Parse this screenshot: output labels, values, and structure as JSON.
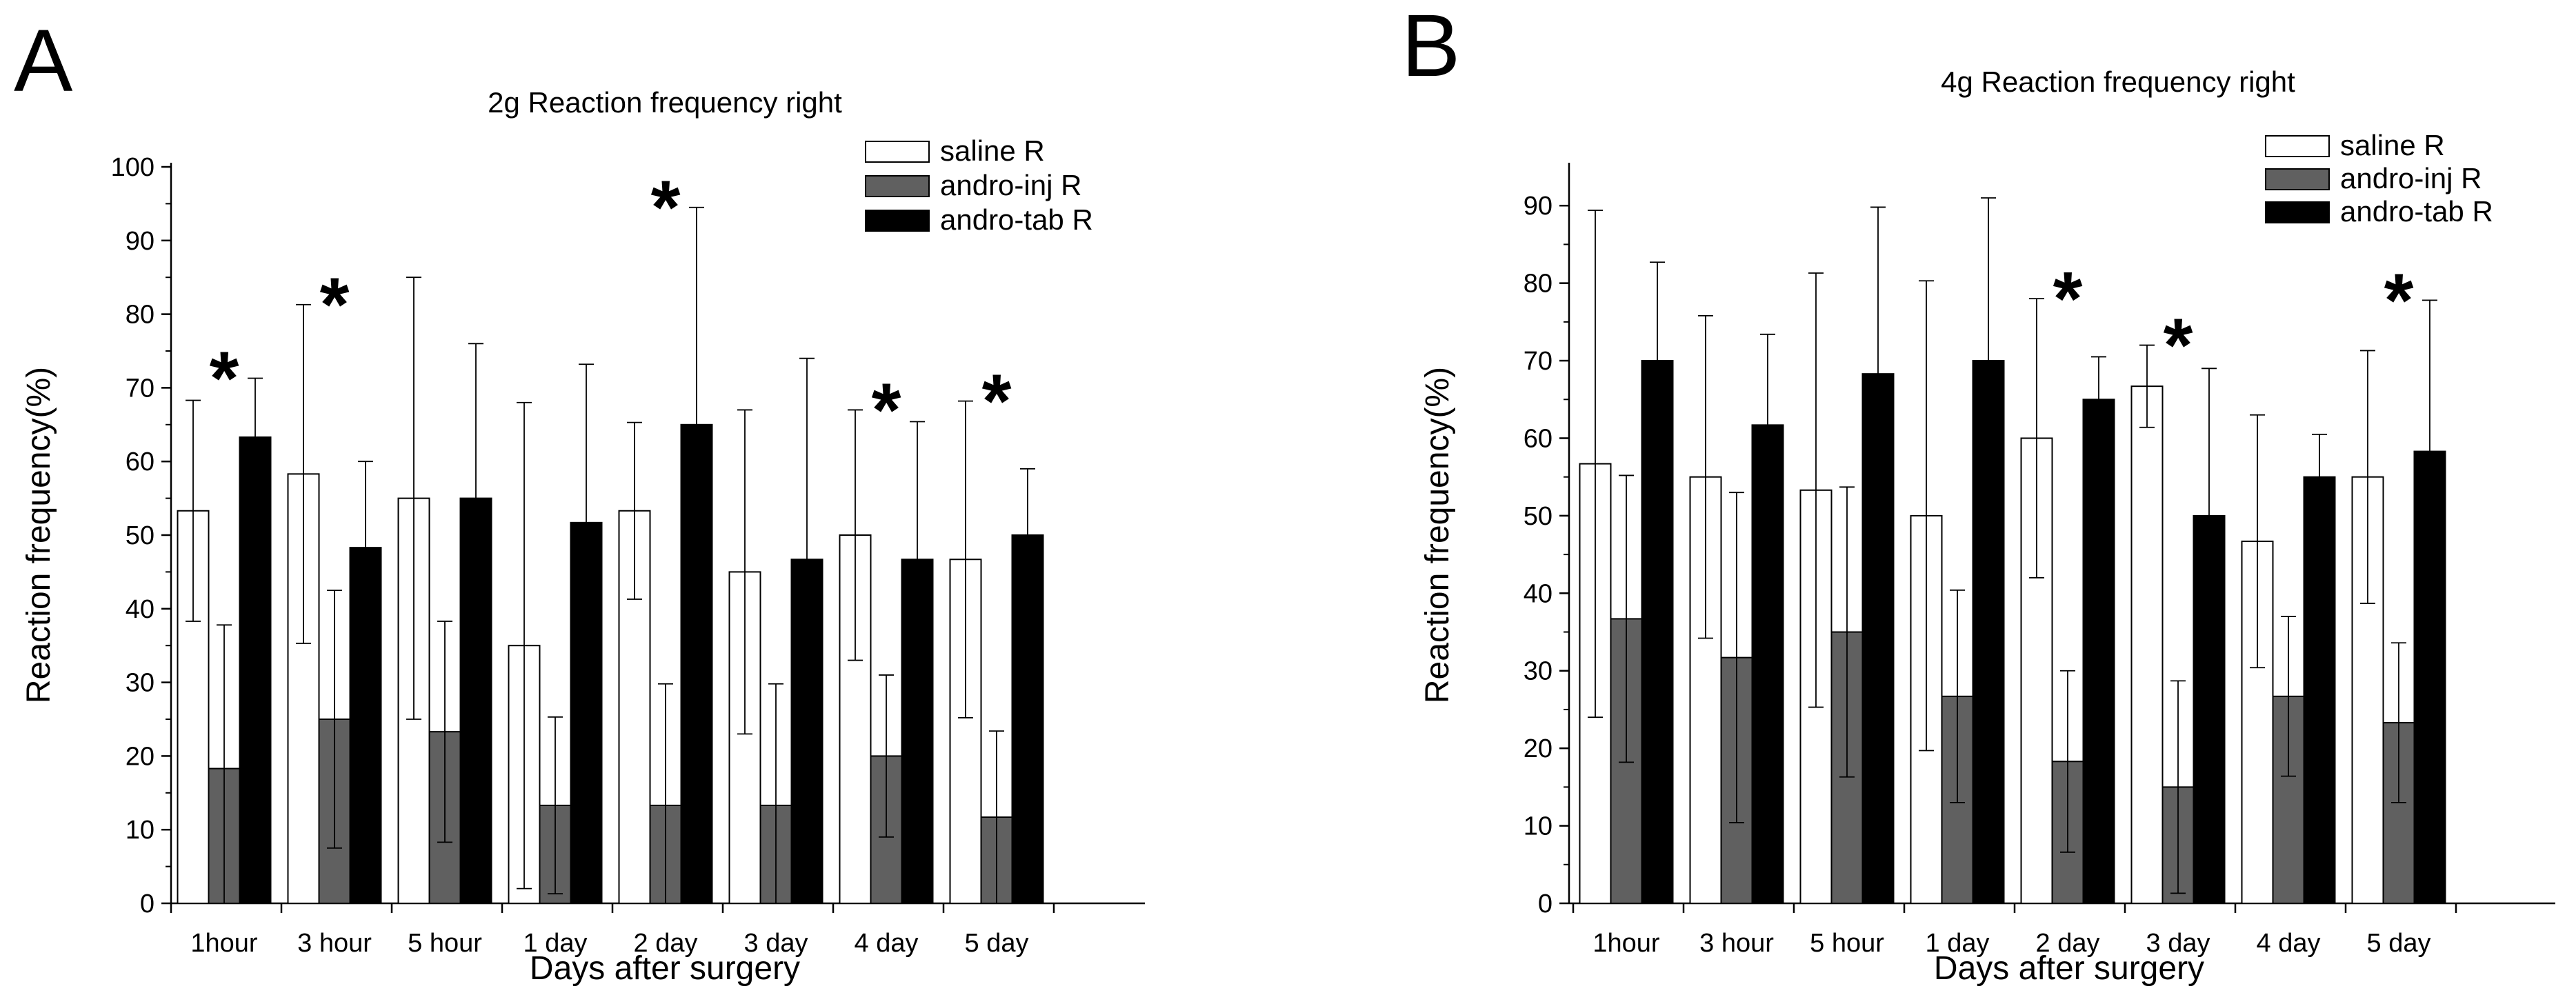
{
  "chart_data": [
    {
      "panel": "A",
      "type": "bar",
      "title": "2g Reaction frequency right",
      "xlabel": "Days after surgery",
      "ylabel": "Reaction frequency(%)",
      "ylim": [
        0,
        100
      ],
      "yticks": [
        0,
        10,
        20,
        30,
        40,
        50,
        60,
        70,
        80,
        90,
        100
      ],
      "categories": [
        "1hour",
        "3 hour",
        "5 hour",
        "1 day",
        "2 day",
        "3 day",
        "4 day",
        "5 day"
      ],
      "series": [
        {
          "name": "saline R",
          "color": "#ffffff",
          "values": [
            53.3,
            58.3,
            55.0,
            35.0,
            53.3,
            45.0,
            50.0,
            46.7
          ],
          "errors": [
            15.0,
            23.0,
            30.0,
            33.0,
            12.0,
            22.0,
            17.0,
            21.5
          ]
        },
        {
          "name": "andro-inj  R",
          "color": "#606060",
          "values": [
            18.3,
            25.0,
            23.3,
            13.3,
            13.3,
            13.3,
            20.0,
            11.7
          ],
          "errors": [
            19.5,
            17.5,
            15.0,
            12.0,
            16.5,
            16.5,
            11.0,
            11.7
          ]
        },
        {
          "name": "andro-tab R",
          "color": "#000000",
          "values": [
            63.3,
            48.3,
            55.0,
            51.7,
            65.0,
            46.7,
            46.7,
            50.0
          ],
          "errors": [
            8.0,
            11.7,
            21.0,
            21.5,
            29.5,
            27.3,
            18.7,
            9.0
          ]
        }
      ],
      "significance": [
        0,
        1,
        4,
        6,
        7
      ],
      "star_label": "*"
    },
    {
      "panel": "B",
      "type": "bar",
      "title": "4g Reaction frequency right",
      "xlabel": "Days after surgery",
      "ylabel": "Reaction frequency(%)",
      "ylim": [
        0,
        95
      ],
      "yticks": [
        0,
        10,
        20,
        30,
        40,
        50,
        60,
        70,
        80,
        90
      ],
      "categories": [
        "1hour",
        "3 hour",
        "5 hour",
        "1 day",
        "2 day",
        "3 day",
        "4 day",
        "5 day"
      ],
      "series": [
        {
          "name": "saline R",
          "color": "#ffffff",
          "values": [
            56.7,
            55.0,
            53.3,
            50.0,
            60.0,
            66.7,
            46.7,
            55.0
          ],
          "errors": [
            32.7,
            20.8,
            28.0,
            30.3,
            18.0,
            5.3,
            16.3,
            16.3
          ]
        },
        {
          "name": "andro-inj  R",
          "color": "#606060",
          "values": [
            36.7,
            31.7,
            35.0,
            26.7,
            18.3,
            15.0,
            26.7,
            23.3
          ],
          "errors": [
            18.5,
            21.3,
            18.7,
            13.7,
            11.7,
            13.7,
            10.3,
            10.3
          ]
        },
        {
          "name": "andro-tab R",
          "color": "#000000",
          "values": [
            70.0,
            61.7,
            68.3,
            70.0,
            65.0,
            50.0,
            55.0,
            58.3
          ],
          "errors": [
            12.7,
            11.7,
            21.5,
            21.0,
            5.5,
            19.0,
            5.5,
            19.5
          ]
        }
      ],
      "significance": [
        4,
        5,
        7
      ],
      "star_label": "*"
    }
  ]
}
